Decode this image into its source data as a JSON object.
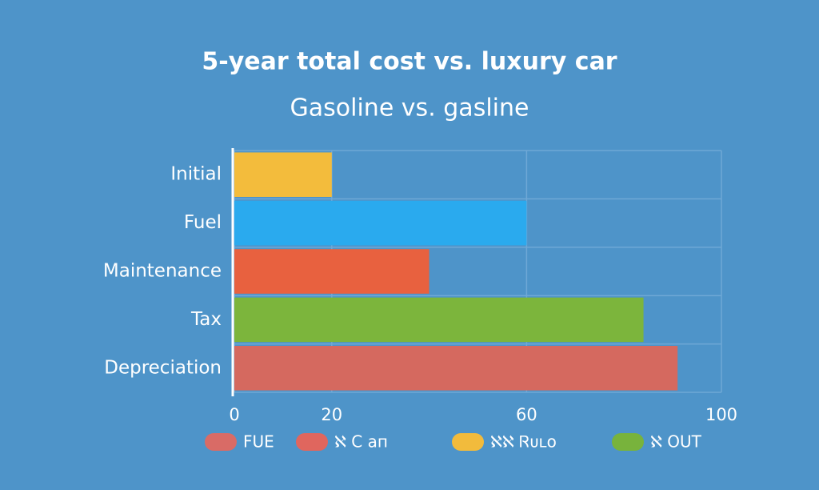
{
  "chart_data": {
    "type": "barh",
    "title": "5-year total cost vs. luxury car",
    "subtitle": "Gasoline vs. gasline",
    "categories": [
      "Initial",
      "Fuel",
      "Maintenance",
      "Tax",
      "Depreciation"
    ],
    "values": [
      20,
      60,
      40,
      84,
      91
    ],
    "colors": [
      "#f3bc3c",
      "#2aaaee",
      "#e8613f",
      "#7cb53c",
      "#d5695f"
    ],
    "xlim": [
      0,
      100
    ],
    "xticks": [
      0,
      20,
      60,
      100
    ],
    "grid": true,
    "legend": [
      {
        "name": "FUE",
        "color": "#d96b66"
      },
      {
        "name": "ℵ C ап",
        "color": "#e0665e"
      },
      {
        "name": "ℵℵ Ꮢᴜʟᴏ",
        "color": "#f2bb3c"
      },
      {
        "name": "ℵ OUT",
        "color": "#78b33c"
      }
    ]
  }
}
